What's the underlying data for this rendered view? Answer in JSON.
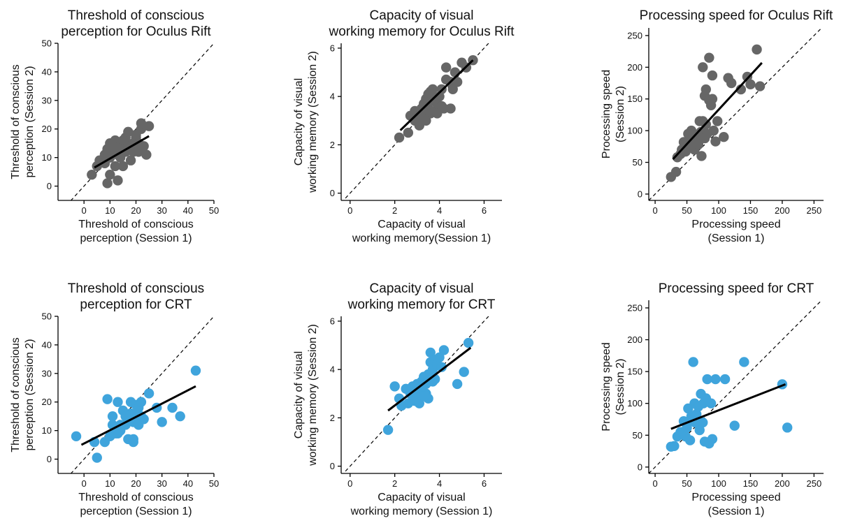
{
  "chart_data": [
    {
      "type": "scatter",
      "title": [
        "Threshold of conscious",
        "perception for Oculus Rift"
      ],
      "xlabel": [
        "Threshold of conscious",
        "perception (Session 1)"
      ],
      "ylabel": [
        "Threshold of conscious",
        "perception (Session 2)"
      ],
      "xlim": [
        -10,
        50
      ],
      "ylim": [
        -5,
        50
      ],
      "xticks": [
        0,
        10,
        20,
        30,
        40,
        50
      ],
      "yticks": [
        0,
        10,
        20,
        30,
        40,
        50
      ],
      "color": "#666666",
      "identity_line": true,
      "fit_line": [
        [
          4,
          6.5
        ],
        [
          25,
          17.5
        ]
      ],
      "series": [
        {
          "points": [
            [
              3,
              4
            ],
            [
              5,
              7
            ],
            [
              6,
              9
            ],
            [
              7,
              9
            ],
            [
              8,
              8
            ],
            [
              8,
              11
            ],
            [
              9,
              12
            ],
            [
              9,
              13
            ],
            [
              10,
              10
            ],
            [
              10,
              15
            ],
            [
              11,
              12
            ],
            [
              11,
              14
            ],
            [
              12,
              16
            ],
            [
              12,
              13
            ],
            [
              13,
              11
            ],
            [
              13,
              15
            ],
            [
              14,
              10
            ],
            [
              14,
              14
            ],
            [
              15,
              16
            ],
            [
              15,
              13
            ],
            [
              16,
              17
            ],
            [
              16,
              12
            ],
            [
              17,
              14
            ],
            [
              17,
              19
            ],
            [
              18,
              9
            ],
            [
              18,
              13
            ],
            [
              19,
              12
            ],
            [
              19,
              15
            ],
            [
              20,
              18
            ],
            [
              20,
              17
            ],
            [
              21,
              12
            ],
            [
              21,
              15
            ],
            [
              22,
              20
            ],
            [
              22,
              22
            ],
            [
              23,
              14
            ],
            [
              24,
              11
            ],
            [
              25,
              21
            ],
            [
              13,
              2
            ],
            [
              10,
              4
            ],
            [
              9,
              1
            ],
            [
              12,
              7
            ],
            [
              15,
              7
            ]
          ]
        }
      ]
    },
    {
      "type": "scatter",
      "title": [
        "Capacity of visual",
        "working memory for Oculus Rift"
      ],
      "xlabel": [
        "Capacity of visual",
        "working memory(Session 1)"
      ],
      "ylabel": [
        "Capacity of visual",
        "working memory (Session 2)"
      ],
      "xlim": [
        -0.4,
        6.8
      ],
      "ylim": [
        -0.3,
        6.2
      ],
      "xticks": [
        0,
        2,
        4,
        6
      ],
      "yticks": [
        0,
        2,
        4,
        6
      ],
      "color": "#666666",
      "identity_line": true,
      "fit_line": [
        [
          2.25,
          2.6
        ],
        [
          5.5,
          5.5
        ]
      ],
      "series": [
        {
          "points": [
            [
              2.2,
              2.3
            ],
            [
              2.6,
              2.5
            ],
            [
              2.7,
              3.2
            ],
            [
              2.9,
              3.4
            ],
            [
              3.0,
              3.2
            ],
            [
              3.1,
              2.8
            ],
            [
              3.2,
              3.5
            ],
            [
              3.3,
              3.7
            ],
            [
              3.3,
              3.3
            ],
            [
              3.4,
              3.9
            ],
            [
              3.5,
              3.5
            ],
            [
              3.5,
              4.1
            ],
            [
              3.6,
              3.3
            ],
            [
              3.6,
              3.8
            ],
            [
              3.7,
              4.0
            ],
            [
              3.7,
              4.3
            ],
            [
              3.8,
              3.4
            ],
            [
              3.8,
              3.9
            ],
            [
              3.9,
              3.7
            ],
            [
              4.0,
              4.0
            ],
            [
              4.1,
              4.3
            ],
            [
              4.2,
              3.5
            ],
            [
              4.3,
              4.7
            ],
            [
              4.3,
              5.2
            ],
            [
              4.5,
              4.6
            ],
            [
              4.5,
              3.5
            ],
            [
              4.6,
              4.3
            ],
            [
              4.7,
              5.0
            ],
            [
              4.8,
              4.6
            ],
            [
              5.0,
              5.4
            ],
            [
              5.2,
              5.2
            ],
            [
              5.5,
              5.5
            ],
            [
              3.4,
              3.0
            ],
            [
              3.9,
              3.3
            ],
            [
              4.1,
              3.6
            ],
            [
              2.9,
              3.0
            ],
            [
              3.2,
              3.1
            ],
            [
              3.6,
              4.2
            ]
          ]
        }
      ]
    },
    {
      "type": "scatter",
      "title": [
        "Processing speed for Oculus Rift"
      ],
      "xlabel": [
        "Processing speed",
        "(Session 1)"
      ],
      "ylabel": [
        "Processing speed",
        "(Session 2)"
      ],
      "xlim": [
        -10,
        265
      ],
      "ylim": [
        -10,
        262
      ],
      "xticks": [
        0,
        50,
        100,
        150,
        200,
        250
      ],
      "yticks": [
        0,
        50,
        100,
        150,
        200,
        250
      ],
      "color": "#666666",
      "identity_line": true,
      "fit_line": [
        [
          28,
          55
        ],
        [
          168,
          207
        ]
      ],
      "series": [
        {
          "points": [
            [
              25,
              27
            ],
            [
              33,
              35
            ],
            [
              35,
              58
            ],
            [
              40,
              63
            ],
            [
              42,
              70
            ],
            [
              45,
              82
            ],
            [
              48,
              67
            ],
            [
              50,
              75
            ],
            [
              52,
              95
            ],
            [
              55,
              85
            ],
            [
              57,
              100
            ],
            [
              60,
              80
            ],
            [
              62,
              70
            ],
            [
              63,
              93
            ],
            [
              65,
              88
            ],
            [
              68,
              78
            ],
            [
              70,
              115
            ],
            [
              72,
              98
            ],
            [
              73,
              60
            ],
            [
              75,
              200
            ],
            [
              75,
              115
            ],
            [
              78,
              155
            ],
            [
              80,
              165
            ],
            [
              80,
              110
            ],
            [
              82,
              95
            ],
            [
              85,
              215
            ],
            [
              85,
              148
            ],
            [
              88,
              140
            ],
            [
              90,
              150
            ],
            [
              90,
              187
            ],
            [
              92,
              100
            ],
            [
              95,
              83
            ],
            [
              98,
              115
            ],
            [
              108,
              90
            ],
            [
              115,
              183
            ],
            [
              120,
              175
            ],
            [
              135,
              165
            ],
            [
              145,
              185
            ],
            [
              150,
              173
            ],
            [
              160,
              228
            ],
            [
              165,
              170
            ],
            [
              60,
              90
            ],
            [
              78,
              88
            ]
          ]
        }
      ]
    },
    {
      "type": "scatter",
      "title": [
        "Threshold of conscious",
        "perception for CRT"
      ],
      "xlabel": [
        "Threshold of conscious",
        "perception (Session 1)"
      ],
      "ylabel": [
        "Threshold of conscious",
        "perception (Session 2)"
      ],
      "xlim": [
        -10,
        50
      ],
      "ylim": [
        -5,
        50
      ],
      "xticks": [
        0,
        10,
        20,
        30,
        40,
        50
      ],
      "yticks": [
        0,
        10,
        20,
        30,
        40,
        50
      ],
      "color": "#3fa4dc",
      "identity_line": true,
      "fit_line": [
        [
          -1,
          5
        ],
        [
          43,
          25.5
        ]
      ],
      "series": [
        {
          "points": [
            [
              -3,
              8
            ],
            [
              4,
              6
            ],
            [
              5,
              0.5
            ],
            [
              8,
              6
            ],
            [
              9,
              21
            ],
            [
              10,
              8
            ],
            [
              11,
              15
            ],
            [
              12,
              9
            ],
            [
              13,
              20
            ],
            [
              14,
              10
            ],
            [
              15,
              17
            ],
            [
              16,
              12
            ],
            [
              17,
              14
            ],
            [
              17,
              7
            ],
            [
              18,
              20
            ],
            [
              18,
              16
            ],
            [
              19,
              13
            ],
            [
              19,
              6
            ],
            [
              20,
              19
            ],
            [
              20,
              16
            ],
            [
              21,
              18
            ],
            [
              21,
              12
            ],
            [
              22,
              20
            ],
            [
              23,
              14
            ],
            [
              25,
              23
            ],
            [
              28,
              18
            ],
            [
              30,
              13
            ],
            [
              34,
              18
            ],
            [
              37,
              15
            ],
            [
              43,
              31
            ],
            [
              13,
              9
            ],
            [
              16,
              15
            ],
            [
              19,
              7
            ],
            [
              11,
              12
            ],
            [
              14,
              12
            ],
            [
              22,
              15
            ]
          ]
        }
      ]
    },
    {
      "type": "scatter",
      "title": [
        "Capacity of visual",
        "working memory for CRT"
      ],
      "xlabel": [
        "Capacity of visual",
        "working memory (Session 1)"
      ],
      "ylabel": [
        "Capacity of visual",
        "working memory (Session 2)"
      ],
      "xlim": [
        -0.4,
        6.8
      ],
      "ylim": [
        -0.3,
        6.2
      ],
      "xticks": [
        0,
        2,
        4,
        6
      ],
      "yticks": [
        0,
        2,
        4,
        6
      ],
      "color": "#3fa4dc",
      "identity_line": true,
      "fit_line": [
        [
          1.7,
          2.3
        ],
        [
          5.4,
          4.9
        ]
      ],
      "series": [
        {
          "points": [
            [
              1.7,
              1.5
            ],
            [
              2.0,
              3.3
            ],
            [
              2.2,
              2.8
            ],
            [
              2.3,
              2.5
            ],
            [
              2.5,
              3.2
            ],
            [
              2.6,
              2.6
            ],
            [
              2.7,
              3.0
            ],
            [
              2.8,
              3.3
            ],
            [
              2.9,
              2.7
            ],
            [
              3.0,
              3.0
            ],
            [
              3.1,
              2.6
            ],
            [
              3.2,
              3.5
            ],
            [
              3.2,
              3.2
            ],
            [
              3.3,
              3.7
            ],
            [
              3.4,
              3.0
            ],
            [
              3.4,
              3.4
            ],
            [
              3.5,
              2.8
            ],
            [
              3.5,
              3.8
            ],
            [
              3.6,
              4.3
            ],
            [
              3.6,
              4.7
            ],
            [
              3.7,
              3.5
            ],
            [
              3.7,
              4.0
            ],
            [
              3.8,
              3.6
            ],
            [
              3.8,
              4.4
            ],
            [
              3.9,
              4.2
            ],
            [
              4.0,
              4.5
            ],
            [
              4.1,
              4.1
            ],
            [
              4.2,
              4.8
            ],
            [
              4.8,
              3.4
            ],
            [
              5.1,
              3.9
            ],
            [
              5.3,
              5.1
            ],
            [
              3.3,
              2.9
            ],
            [
              3.0,
              3.4
            ]
          ]
        }
      ]
    },
    {
      "type": "scatter",
      "title": [
        "Processing speed for CRT"
      ],
      "xlabel": [
        "Processing speed",
        "(Session 1)"
      ],
      "ylabel": [
        "Processing speed",
        "(Session 2)"
      ],
      "xlim": [
        -10,
        265
      ],
      "ylim": [
        -10,
        262
      ],
      "xticks": [
        0,
        50,
        100,
        150,
        200,
        250
      ],
      "yticks": [
        0,
        50,
        100,
        150,
        200,
        250
      ],
      "color": "#3fa4dc",
      "identity_line": true,
      "fit_line": [
        [
          25,
          60
        ],
        [
          205,
          130
        ]
      ],
      "series": [
        {
          "points": [
            [
              25,
              32
            ],
            [
              30,
              33
            ],
            [
              35,
              48
            ],
            [
              40,
              55
            ],
            [
              45,
              72
            ],
            [
              50,
              62
            ],
            [
              52,
              92
            ],
            [
              55,
              42
            ],
            [
              57,
              80
            ],
            [
              60,
              165
            ],
            [
              62,
              100
            ],
            [
              63,
              70
            ],
            [
              65,
              83
            ],
            [
              68,
              95
            ],
            [
              70,
              58
            ],
            [
              72,
              115
            ],
            [
              75,
              70
            ],
            [
              76,
              100
            ],
            [
              78,
              40
            ],
            [
              80,
              108
            ],
            [
              82,
              138
            ],
            [
              85,
              37
            ],
            [
              88,
              100
            ],
            [
              90,
              44
            ],
            [
              95,
              138
            ],
            [
              110,
              138
            ],
            [
              125,
              65
            ],
            [
              140,
              165
            ],
            [
              200,
              130
            ],
            [
              208,
              62
            ],
            [
              48,
              48
            ],
            [
              58,
              75
            ]
          ]
        }
      ]
    }
  ]
}
